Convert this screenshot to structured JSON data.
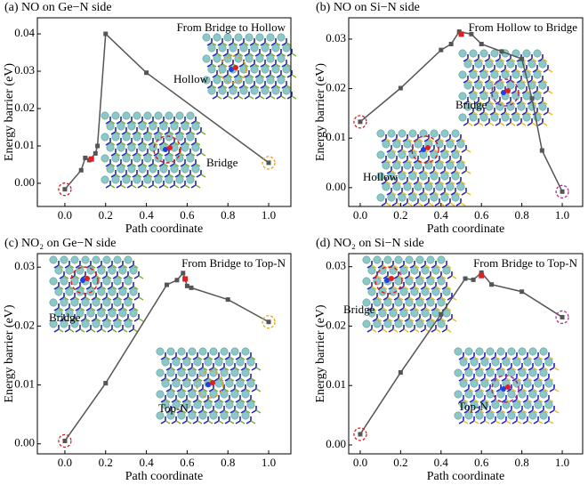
{
  "chart_data": [
    {
      "type": "line",
      "title": "(a) NO on Ge−N side",
      "xlabel": "Path coordinate",
      "ylabel": "Energy barrier (eV)",
      "x": [
        0,
        0.08,
        0.1,
        0.12,
        0.15,
        0.16,
        0.2,
        0.4,
        1.0
      ],
      "values": [
        -0.0016,
        0.0035,
        0.0068,
        0.0062,
        0.008,
        0.01,
        0.04,
        0.0296,
        0.0055
      ],
      "color": "#555555",
      "highlight": {
        "x": [
          0.13
        ],
        "values": [
          0.0065
        ],
        "color": "#e02020"
      },
      "endpoint_colors": [
        "#d62020",
        "#e8a020"
      ],
      "annotations": [
        {
          "text": "From Bridge to Hollow",
          "color": "#000000"
        },
        {
          "text": "Hollow",
          "color": "#e0a020"
        },
        {
          "text": "Bridge",
          "color": "#d62020"
        }
      ],
      "xlim": [
        -0.135,
        1.109
      ],
      "ylim": [
        -0.0062,
        0.0443
      ],
      "xticks": [
        {
          "value": 0,
          "label": "0.0"
        },
        {
          "value": 0.2,
          "label": "0.2"
        },
        {
          "value": 0.4,
          "label": "0.4"
        },
        {
          "value": 0.6,
          "label": "0.6"
        },
        {
          "value": 0.8,
          "label": "0.8"
        },
        {
          "value": 1,
          "label": "1.0"
        }
      ],
      "yticks": [
        {
          "value": 0,
          "label": "0.00"
        },
        {
          "value": 0.01,
          "label": "0.01"
        },
        {
          "value": 0.02,
          "label": "0.02"
        },
        {
          "value": 0.03,
          "label": "0.03"
        },
        {
          "value": 0.04,
          "label": "0.04"
        }
      ]
    },
    {
      "type": "line",
      "title": "(b) NO on Si−N side",
      "xlabel": "Path coordinate",
      "ylabel": "Energy barrier (eV)",
      "x": [
        0,
        0.2,
        0.4,
        0.45,
        0.49,
        0.55,
        0.6,
        0.7,
        0.8,
        0.85,
        0.9,
        1.0
      ],
      "values": [
        0.0133,
        0.0201,
        0.0278,
        0.029,
        0.0315,
        0.031,
        0.029,
        0.0275,
        0.026,
        0.018,
        0.0075,
        -0.0008
      ],
      "color": "#555555",
      "highlight": {
        "x": [
          0.5
        ],
        "values": [
          0.031
        ],
        "color": "#e02020"
      },
      "endpoint_colors": [
        "#d62020",
        "#b03080"
      ],
      "annotations": [
        {
          "text": "From Hollow to Bridge",
          "color": "#000000"
        },
        {
          "text": "Bridge",
          "color": "#a03080"
        },
        {
          "text": "Hollow",
          "color": "#d62020"
        }
      ],
      "xlim": [
        -0.057,
        1.101
      ],
      "ylim": [
        -0.0038,
        0.0343
      ],
      "xticks": [
        {
          "value": 0,
          "label": "0.0"
        },
        {
          "value": 0.2,
          "label": "0.2"
        },
        {
          "value": 0.4,
          "label": "0.4"
        },
        {
          "value": 0.6,
          "label": "0.6"
        },
        {
          "value": 0.8,
          "label": "0.8"
        },
        {
          "value": 1,
          "label": "1.0"
        }
      ],
      "yticks": [
        {
          "value": 0,
          "label": "0.00"
        },
        {
          "value": 0.01,
          "label": "0.01"
        },
        {
          "value": 0.02,
          "label": "0.02"
        },
        {
          "value": 0.03,
          "label": "0.03"
        }
      ]
    },
    {
      "type": "line",
      "title": "(c) NO₂ on Ge−N side",
      "xlabel": "Path coordinate",
      "ylabel": "Energy barrier (eV)",
      "x": [
        0,
        0.2,
        0.5,
        0.55,
        0.58,
        0.6,
        0.62,
        0.8,
        1.0
      ],
      "values": [
        0.0005,
        0.0103,
        0.027,
        0.0278,
        0.029,
        0.0268,
        0.0265,
        0.0245,
        0.0207
      ],
      "color": "#555555",
      "highlight": {
        "x": [
          0.59
        ],
        "values": [
          0.028
        ],
        "color": "#e02020"
      },
      "endpoint_colors": [
        "#d62020",
        "#e8a020"
      ],
      "annotations": [
        {
          "text": "From Bridge to Top-N",
          "color": "#000000"
        },
        {
          "text": "Bridge",
          "color": "#d62020"
        },
        {
          "text": "Top-N",
          "color": "#e0a020"
        }
      ],
      "xlim": [
        -0.135,
        1.109
      ],
      "ylim": [
        -0.0017,
        0.0323
      ],
      "xticks": [
        {
          "value": 0,
          "label": "0.0"
        },
        {
          "value": 0.2,
          "label": "0.2"
        },
        {
          "value": 0.4,
          "label": "0.4"
        },
        {
          "value": 0.6,
          "label": "0.6"
        },
        {
          "value": 0.8,
          "label": "0.8"
        },
        {
          "value": 1,
          "label": "1.0"
        }
      ],
      "yticks": [
        {
          "value": 0,
          "label": "0.00"
        },
        {
          "value": 0.01,
          "label": "0.01"
        },
        {
          "value": 0.02,
          "label": "0.02"
        },
        {
          "value": 0.03,
          "label": "0.03"
        }
      ]
    },
    {
      "type": "line",
      "title": "(d) NO₂ on Si−N side",
      "xlabel": "Path coordinate",
      "ylabel": "Energy barrier (eV)",
      "x": [
        0,
        0.2,
        0.4,
        0.52,
        0.56,
        0.6,
        0.65,
        0.8,
        1.0
      ],
      "values": [
        0.0018,
        0.0122,
        0.022,
        0.028,
        0.0278,
        0.029,
        0.027,
        0.0258,
        0.0215
      ],
      "color": "#555555",
      "highlight": {
        "x": [
          0.6
        ],
        "values": [
          0.0285
        ],
        "color": "#e02020"
      },
      "endpoint_colors": [
        "#d62020",
        "#b03080"
      ],
      "annotations": [
        {
          "text": "From Bridge to Top-N",
          "color": "#000000"
        },
        {
          "text": "Bridge",
          "color": "#d62020"
        },
        {
          "text": "Top-N",
          "color": "#a03080"
        }
      ],
      "xlim": [
        -0.057,
        1.101
      ],
      "ylim": [
        -0.0015,
        0.0322
      ],
      "xticks": [
        {
          "value": 0,
          "label": "0.0"
        },
        {
          "value": 0.2,
          "label": "0.2"
        },
        {
          "value": 0.4,
          "label": "0.4"
        },
        {
          "value": 0.6,
          "label": "0.6"
        },
        {
          "value": 0.8,
          "label": "0.8"
        },
        {
          "value": 1,
          "label": "1.0"
        }
      ],
      "yticks": [
        {
          "value": 0,
          "label": "0.00"
        },
        {
          "value": 0.01,
          "label": "0.01"
        },
        {
          "value": 0.02,
          "label": "0.02"
        },
        {
          "value": 0.03,
          "label": "0.03"
        }
      ]
    }
  ]
}
